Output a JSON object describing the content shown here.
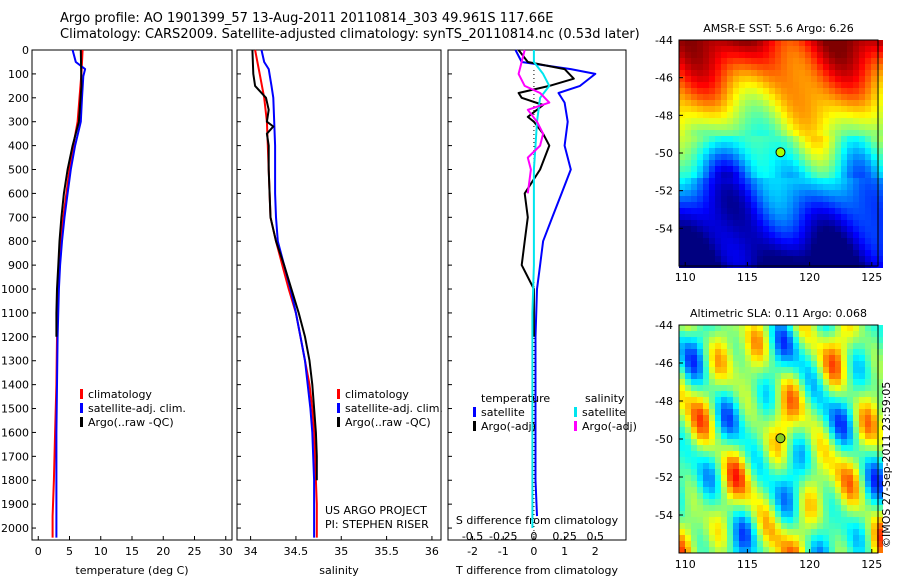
{
  "title_line1": "Argo profile: AO 1901399_57 13-Aug-2011 20110814_303 49.961S 117.66E",
  "title_line2": "Climatology: CARS2009. Satellite-adjusted climatology: synTS_20110814.nc (0.53d later)",
  "credit": "©IMOS 27-Sep-2011 23:59:05",
  "colors": {
    "climatology": "#ff0000",
    "satellite": "#0000ff",
    "argo": "#000000",
    "satellite_diff": "#00e5ee",
    "argo_diff": "#ff00ff"
  },
  "chart_data": [
    {
      "type": "line",
      "xlabel": "temperature (deg C)",
      "ylim": [
        2050,
        0
      ],
      "xlim": [
        -1,
        31
      ],
      "xticks": [
        0,
        5,
        10,
        15,
        20,
        25,
        30
      ],
      "yticks": [
        0,
        100,
        200,
        300,
        400,
        500,
        600,
        700,
        800,
        900,
        1000,
        1100,
        1200,
        1300,
        1400,
        1500,
        1600,
        1700,
        1800,
        1900,
        2000
      ],
      "legend": [
        "climatology",
        "satellite-adj. clim.",
        "Argo(..raw -QC)"
      ],
      "series": [
        {
          "name": "climatology",
          "color": "#ff0000",
          "width": 2,
          "points": [
            [
              7.1,
              0
            ],
            [
              6.9,
              100
            ],
            [
              6.6,
              200
            ],
            [
              6.3,
              300
            ],
            [
              5.6,
              400
            ],
            [
              5.0,
              500
            ],
            [
              4.5,
              600
            ],
            [
              4.0,
              700
            ],
            [
              3.6,
              800
            ],
            [
              3.4,
              900
            ],
            [
              3.2,
              1000
            ],
            [
              3.0,
              1200
            ],
            [
              2.9,
              1400
            ],
            [
              2.7,
              1600
            ],
            [
              2.5,
              1800
            ],
            [
              2.3,
              1950
            ],
            [
              2.3,
              2040
            ]
          ]
        },
        {
          "name": "satellite-adj. clim.",
          "color": "#0000ff",
          "width": 2,
          "points": [
            [
              5.5,
              0
            ],
            [
              6.0,
              50
            ],
            [
              7.5,
              80
            ],
            [
              7.2,
              110
            ],
            [
              7.0,
              200
            ],
            [
              6.8,
              300
            ],
            [
              5.9,
              400
            ],
            [
              5.2,
              500
            ],
            [
              4.7,
              600
            ],
            [
              4.2,
              700
            ],
            [
              3.8,
              800
            ],
            [
              3.5,
              900
            ],
            [
              3.3,
              1000
            ],
            [
              3.1,
              1200
            ],
            [
              3.0,
              1400
            ],
            [
              2.9,
              1600
            ],
            [
              2.9,
              1800
            ],
            [
              2.9,
              2000
            ],
            [
              2.9,
              2040
            ]
          ]
        },
        {
          "name": "Argo(..raw -QC)",
          "color": "#000000",
          "width": 2,
          "points": [
            [
              6.8,
              0
            ],
            [
              6.9,
              150
            ],
            [
              6.5,
              300
            ],
            [
              5.5,
              400
            ],
            [
              4.7,
              500
            ],
            [
              4.1,
              600
            ],
            [
              3.7,
              700
            ],
            [
              3.4,
              800
            ],
            [
              3.2,
              900
            ],
            [
              3.0,
              1000
            ],
            [
              2.9,
              1100
            ],
            [
              2.9,
              1200
            ]
          ]
        }
      ]
    },
    {
      "type": "line",
      "xlabel": "salinity",
      "ylim": [
        2050,
        0
      ],
      "xlim": [
        33.85,
        36.1
      ],
      "xticks": [
        34,
        34.5,
        35,
        35.5,
        36
      ],
      "legend": [
        "climatology",
        "satellite-adj. clim.",
        "Argo(..raw -QC)"
      ],
      "annotation": [
        "US ARGO PROJECT",
        "PI: STEPHEN RISER"
      ],
      "series": [
        {
          "name": "climatology",
          "color": "#ff0000",
          "width": 2,
          "points": [
            [
              34.05,
              0
            ],
            [
              34.1,
              100
            ],
            [
              34.15,
              200
            ],
            [
              34.18,
              300
            ],
            [
              34.2,
              500
            ],
            [
              34.22,
              700
            ],
            [
              34.28,
              800
            ],
            [
              34.35,
              900
            ],
            [
              34.42,
              1000
            ],
            [
              34.5,
              1100
            ],
            [
              34.55,
              1200
            ],
            [
              34.6,
              1300
            ],
            [
              34.65,
              1400
            ],
            [
              34.68,
              1500
            ],
            [
              34.7,
              1600
            ],
            [
              34.71,
              1700
            ],
            [
              34.72,
              1800
            ],
            [
              34.73,
              1900
            ],
            [
              34.73,
              2040
            ]
          ]
        },
        {
          "name": "satellite-adj. clim.",
          "color": "#0000ff",
          "width": 2,
          "points": [
            [
              34.12,
              0
            ],
            [
              34.15,
              50
            ],
            [
              34.2,
              80
            ],
            [
              34.23,
              150
            ],
            [
              34.25,
              200
            ],
            [
              34.26,
              300
            ],
            [
              34.27,
              400
            ],
            [
              34.27,
              500
            ],
            [
              34.27,
              600
            ],
            [
              34.28,
              700
            ],
            [
              34.3,
              800
            ],
            [
              34.37,
              900
            ],
            [
              34.44,
              1000
            ],
            [
              34.5,
              1100
            ],
            [
              34.55,
              1200
            ],
            [
              34.6,
              1300
            ],
            [
              34.63,
              1400
            ],
            [
              34.66,
              1500
            ],
            [
              34.68,
              1600
            ],
            [
              34.69,
              1700
            ],
            [
              34.7,
              1800
            ],
            [
              34.7,
              1900
            ],
            [
              34.7,
              2040
            ]
          ]
        },
        {
          "name": "Argo(..raw -QC)",
          "color": "#000000",
          "width": 2,
          "points": [
            [
              34.02,
              0
            ],
            [
              34.03,
              100
            ],
            [
              34.05,
              150
            ],
            [
              34.17,
              200
            ],
            [
              34.2,
              250
            ],
            [
              34.18,
              300
            ],
            [
              34.25,
              320
            ],
            [
              34.18,
              350
            ],
            [
              34.2,
              400
            ],
            [
              34.2,
              500
            ],
            [
              34.22,
              700
            ],
            [
              34.28,
              800
            ],
            [
              34.37,
              900
            ],
            [
              34.45,
              1000
            ],
            [
              34.53,
              1100
            ],
            [
              34.6,
              1200
            ],
            [
              34.65,
              1300
            ],
            [
              34.68,
              1400
            ],
            [
              34.7,
              1500
            ],
            [
              34.72,
              1600
            ],
            [
              34.73,
              1700
            ],
            [
              34.73,
              1800
            ]
          ]
        }
      ]
    },
    {
      "type": "line",
      "xlabel": "T difference from climatology",
      "xlabel_top": "S difference from climatology",
      "ylim": [
        2050,
        0
      ],
      "xlim": [
        -2.8,
        3.0
      ],
      "xticks": [
        -2,
        -1,
        0,
        1,
        2
      ],
      "top_xticks": [
        -0.5,
        -0.25,
        0,
        0.25,
        0.5
      ],
      "legend_headers": [
        "temperature",
        "salinity"
      ],
      "legend": [
        "satellite",
        "Argo(-adj)",
        "satellite",
        "Argo(-adj)"
      ],
      "series": [
        {
          "name": "satellite",
          "color": "#0000ff",
          "width": 2,
          "points": [
            [
              -0.6,
              0
            ],
            [
              -0.4,
              50
            ],
            [
              1.2,
              80
            ],
            [
              2.0,
              100
            ],
            [
              1.5,
              150
            ],
            [
              0.8,
              180
            ],
            [
              1.0,
              220
            ],
            [
              1.1,
              300
            ],
            [
              1.0,
              400
            ],
            [
              1.2,
              500
            ],
            [
              0.9,
              600
            ],
            [
              0.6,
              700
            ],
            [
              0.3,
              800
            ],
            [
              0.2,
              900
            ],
            [
              0.1,
              1000
            ],
            [
              0.05,
              1200
            ],
            [
              0.05,
              1400
            ],
            [
              0.05,
              1600
            ],
            [
              0.05,
              1800
            ],
            [
              0.1,
              1950
            ]
          ]
        },
        {
          "name": "Argo(-adj)",
          "color": "#000000",
          "width": 2,
          "points": [
            [
              -0.5,
              0
            ],
            [
              -0.2,
              50
            ],
            [
              1.0,
              80
            ],
            [
              1.3,
              120
            ],
            [
              0.5,
              150
            ],
            [
              -0.5,
              180
            ],
            [
              -0.4,
              200
            ],
            [
              0.3,
              230
            ],
            [
              -0.2,
              280
            ],
            [
              0.0,
              300
            ],
            [
              0.3,
              350
            ],
            [
              0.5,
              400
            ],
            [
              0.2,
              500
            ],
            [
              -0.3,
              600
            ],
            [
              -0.2,
              700
            ],
            [
              -0.3,
              800
            ],
            [
              -0.4,
              900
            ],
            [
              0.0,
              1000
            ],
            [
              0.0,
              1100
            ],
            [
              0.0,
              1200
            ]
          ]
        },
        {
          "name": "satellite",
          "color": "#00e5ee",
          "width": 2,
          "points": [
            [
              0.0,
              0
            ],
            [
              0.0,
              50
            ],
            [
              0.3,
              100
            ],
            [
              0.5,
              150
            ],
            [
              0.2,
              200
            ],
            [
              0.1,
              300
            ],
            [
              0.05,
              400
            ],
            [
              0.0,
              500
            ],
            [
              0.0,
              700
            ],
            [
              0.0,
              900
            ],
            [
              -0.05,
              1100
            ],
            [
              -0.05,
              1300
            ],
            [
              -0.05,
              1500
            ],
            [
              -0.05,
              1700
            ],
            [
              -0.05,
              1900
            ],
            [
              -0.05,
              2000
            ]
          ]
        },
        {
          "name": "Argo(-adj)",
          "color": "#ff00ff",
          "width": 2,
          "points": [
            [
              -0.3,
              0
            ],
            [
              -0.5,
              100
            ],
            [
              -0.3,
              150
            ],
            [
              0.2,
              180
            ],
            [
              0.5,
              220
            ],
            [
              -0.2,
              250
            ],
            [
              0.1,
              300
            ],
            [
              0.3,
              350
            ],
            [
              0.2,
              400
            ],
            [
              -0.2,
              450
            ],
            [
              -0.1,
              500
            ],
            [
              -0.2,
              600
            ]
          ]
        }
      ]
    },
    {
      "type": "heatmap",
      "title": "AMSR-E SST: 5.6 Argo: 6.26",
      "xlim": [
        109.5,
        125.5
      ],
      "ylim": [
        -56,
        -44
      ],
      "xticks": [
        110,
        115,
        120,
        125
      ],
      "yticks": [
        -44,
        -46,
        -48,
        -50,
        -52,
        -54
      ],
      "marker": [
        117.66,
        -49.96
      ],
      "colormap": "jet"
    },
    {
      "type": "heatmap",
      "title": "Altimetric SLA: 0.11 Argo: 0.068",
      "xlim": [
        109.5,
        125.5
      ],
      "ylim": [
        -56,
        -44
      ],
      "xticks": [
        110,
        115,
        120,
        125
      ],
      "yticks": [
        -44,
        -46,
        -48,
        -50,
        -52,
        -54
      ],
      "marker": [
        117.66,
        -49.96
      ],
      "colormap": "jet"
    }
  ]
}
